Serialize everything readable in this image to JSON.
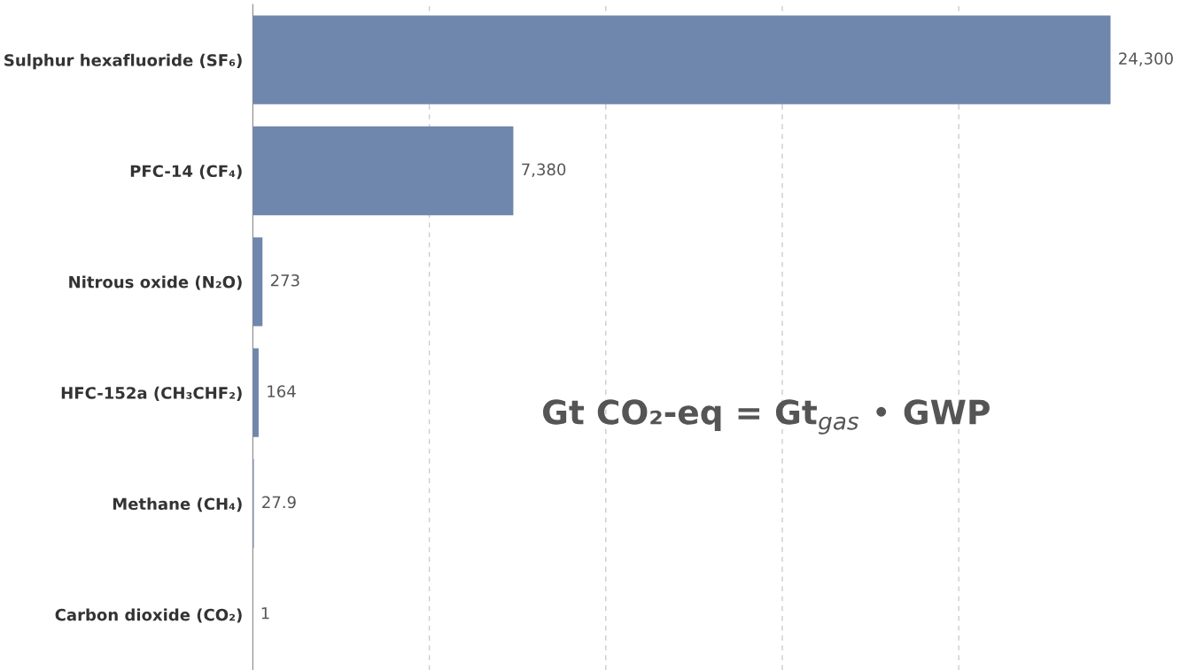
{
  "chart_data": {
    "type": "bar",
    "orientation": "horizontal",
    "categories": [
      "Sulphur hexafluoride (SF₆)",
      "PFC-14 (CF₄)",
      "Nitrous oxide (N₂O)",
      "HFC-152a (CH₃CHF₂)",
      "Methane (CH₄)",
      "Carbon dioxide (CO₂)"
    ],
    "values": [
      24300,
      7380,
      273,
      164,
      27.9,
      1
    ],
    "value_labels": [
      "24,300",
      "7,380",
      "273",
      "164",
      "27.9",
      "1"
    ],
    "color": "#6f86ad",
    "xticks": [
      {
        "value": 5000,
        "label": null
      },
      {
        "value": 10000,
        "label": null
      },
      {
        "value": 15000,
        "label": null
      },
      {
        "value": 20000,
        "label": null
      }
    ],
    "tick_labels": "y",
    "grid": "x",
    "annotations": [
      "Gt CO₂-eq = Gt$_{gas}$ • GWP"
    ]
  }
}
